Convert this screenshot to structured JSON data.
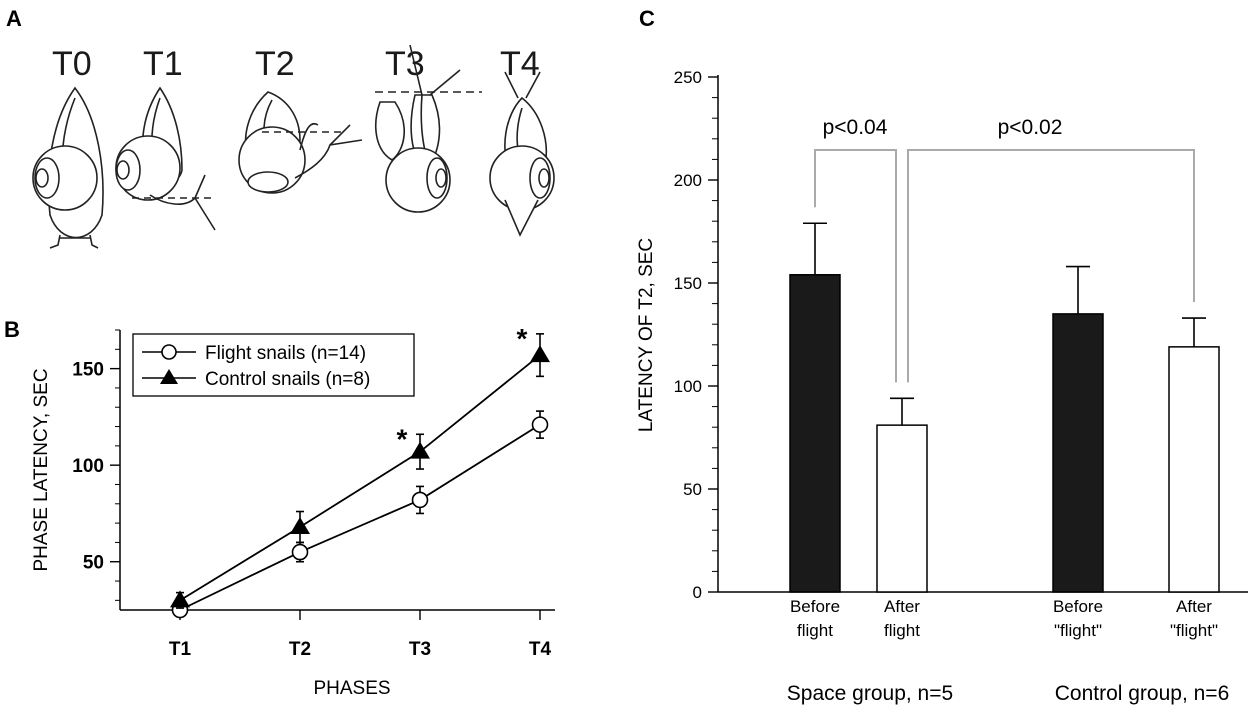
{
  "panels": {
    "a": {
      "letter": "A",
      "phase_labels": [
        "T0",
        "T1",
        "T2",
        "T3",
        "T4"
      ],
      "illustration": "snail-righting-phases"
    },
    "b": {
      "letter": "B"
    },
    "c": {
      "letter": "C"
    }
  },
  "chart_data": [
    {
      "panel": "B",
      "type": "line",
      "categories": [
        "T1",
        "T2",
        "T3",
        "T4"
      ],
      "xlabel": "PHASES",
      "ylabel": "PHASE LATENCY, SEC",
      "ylim": [
        25,
        170
      ],
      "yticks": [
        50,
        100,
        150
      ],
      "legend_position": "top-left",
      "series": [
        {
          "name": "Flight snails (n=14)",
          "marker": "open-circle",
          "values": [
            25,
            55,
            82,
            121
          ],
          "errors": [
            3,
            5,
            7,
            7
          ]
        },
        {
          "name": "Control snails (n=8)",
          "marker": "filled-triangle",
          "values": [
            30,
            68,
            107,
            157
          ],
          "errors": [
            4,
            8,
            9,
            11
          ]
        }
      ],
      "annotations": [
        {
          "text": "*",
          "category": "T3"
        },
        {
          "text": "*",
          "category": "T4"
        }
      ]
    },
    {
      "panel": "C",
      "type": "bar",
      "ylabel": "LATENCY OF T2, SEC",
      "ylim": [
        0,
        250
      ],
      "yticks": [
        0,
        50,
        100,
        150,
        200,
        250
      ],
      "categories": [
        "Before\nflight",
        "After\nflight",
        "Before\n\"flight\"",
        "After\n\"flight\""
      ],
      "values": [
        154,
        81,
        135,
        119
      ],
      "errors": [
        25,
        13,
        23,
        14
      ],
      "bar_colors": [
        "#1a1a1a",
        "#ffffff",
        "#1a1a1a",
        "#ffffff"
      ],
      "groups": [
        {
          "label": "Space group, n=5",
          "members": [
            0,
            1
          ]
        },
        {
          "label": "Control group, n=6",
          "members": [
            2,
            3
          ]
        }
      ],
      "significance": [
        {
          "text": "p<0.04",
          "between": [
            0,
            1
          ]
        },
        {
          "text": "p<0.02",
          "between": [
            1,
            3
          ]
        }
      ],
      "bracket_color": "#aaaaaa"
    }
  ]
}
